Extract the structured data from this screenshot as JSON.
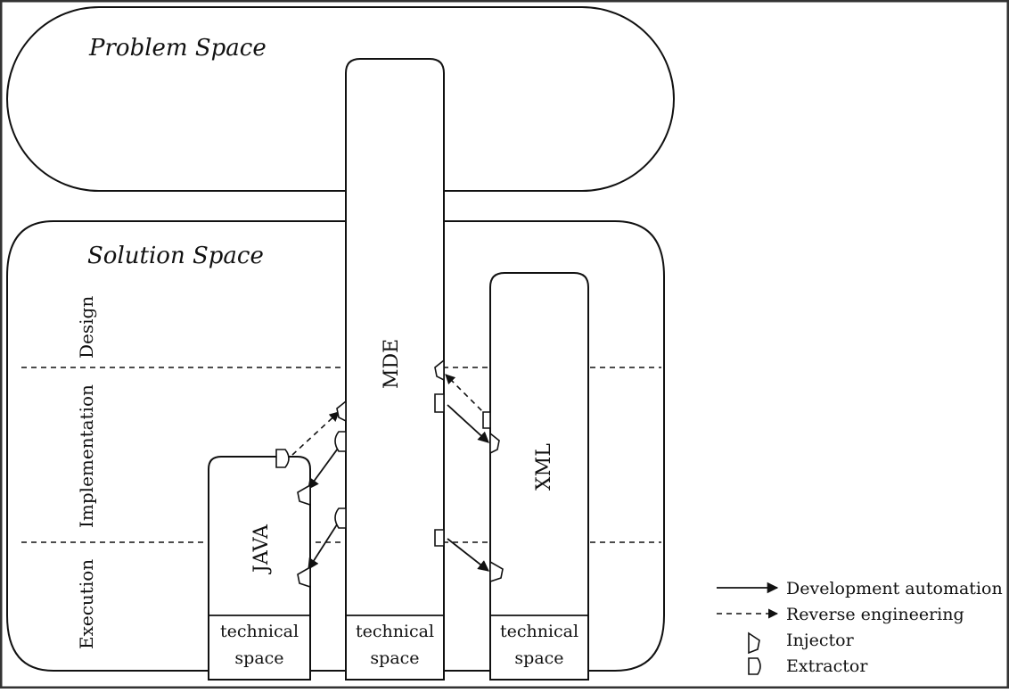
{
  "spaces": {
    "problem": "Problem Space",
    "solution": "Solution Space"
  },
  "levels": [
    "Design",
    "Implementation",
    "Execution"
  ],
  "columns": [
    {
      "name": "JAVA",
      "footer_line1": "technical",
      "footer_line2": "space"
    },
    {
      "name": "MDE",
      "footer_line1": "technical",
      "footer_line2": "space"
    },
    {
      "name": "XML",
      "footer_line1": "technical",
      "footer_line2": "space"
    }
  ],
  "legend": {
    "development": "Development automation",
    "reverse": "Reverse engineering",
    "injector": "Injector",
    "extractor": "Extractor"
  }
}
